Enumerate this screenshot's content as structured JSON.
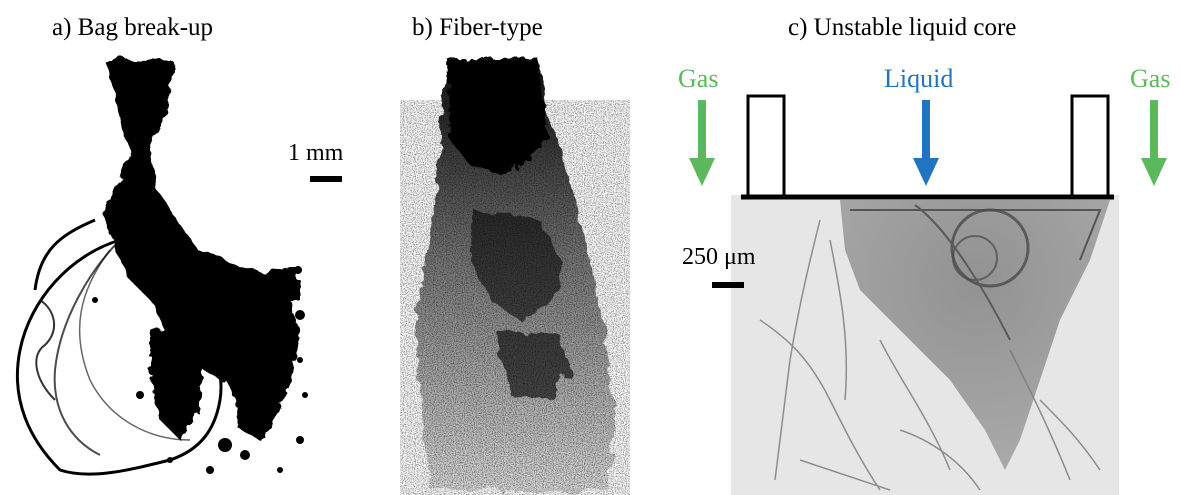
{
  "panels": [
    {
      "title": "a) Bag break-up",
      "scale_label": "1 mm"
    },
    {
      "title": "b) Fiber-type"
    },
    {
      "title": "c) Unstable liquid core",
      "scale_label": "250 μm"
    }
  ],
  "flows": {
    "gas_label": "Gas",
    "liquid_label": "Liquid",
    "gas_color": "#5cb85c",
    "liquid_color": "#1f75bf"
  }
}
